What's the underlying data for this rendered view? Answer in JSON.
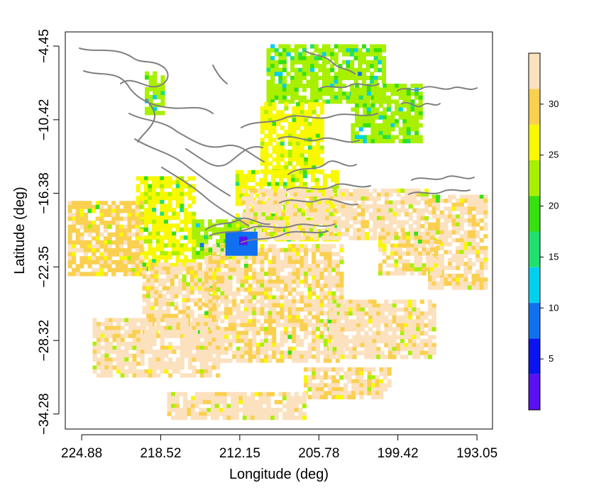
{
  "chart_data": {
    "type": "heatmap",
    "title": "",
    "xlabel": "Longitude (deg)",
    "ylabel": "Latitude (deg)",
    "x_ticks": [
      "224.88",
      "218.52",
      "212.15",
      "205.78",
      "199.42",
      "193.05"
    ],
    "y_ticks": [
      "-4.45",
      "-10.42",
      "-16.38",
      "-22.35",
      "-28.32",
      "-34.28"
    ],
    "x_reversed": true,
    "xlim": [
      226.2,
      191.8
    ],
    "ylim": [
      -35.5,
      -3.3
    ],
    "grid": false,
    "colorbar": {
      "ticks": [
        "5",
        "10",
        "15",
        "20",
        "25",
        "30"
      ],
      "min": 0,
      "max": 35,
      "steps": [
        {
          "from": 0,
          "to": 3.5,
          "color": "#5a10f0"
        },
        {
          "from": 3.5,
          "to": 7,
          "color": "#0a14f0"
        },
        {
          "from": 7,
          "to": 10.5,
          "color": "#1070f0"
        },
        {
          "from": 10.5,
          "to": 14,
          "color": "#00d0f0"
        },
        {
          "from": 14,
          "to": 17.5,
          "color": "#20e070"
        },
        {
          "from": 17.5,
          "to": 21,
          "color": "#38e010"
        },
        {
          "from": 21,
          "to": 24.5,
          "color": "#a8f000"
        },
        {
          "from": 24.5,
          "to": 28,
          "color": "#f8f800"
        },
        {
          "from": 28,
          "to": 31.5,
          "color": "#fad050"
        },
        {
          "from": 31.5,
          "to": 35,
          "color": "#fce1be"
        }
      ]
    },
    "disk": {
      "center_lon": 209.0,
      "center_lat": -19.6,
      "radius_deg": 19.0
    },
    "regions": [
      {
        "lon_min": 210.0,
        "lon_max": 200.5,
        "lat_min": -9.0,
        "lat_max": -4.3,
        "value": 22
      },
      {
        "lon_min": 210.5,
        "lon_max": 205.5,
        "lat_min": -14.5,
        "lat_max": -9.0,
        "value": 27
      },
      {
        "lon_min": 212.5,
        "lon_max": 204.5,
        "lat_min": -20.0,
        "lat_max": -14.5,
        "value": 27
      },
      {
        "lon_min": 203.2,
        "lon_max": 197.5,
        "lat_min": -12.0,
        "lat_max": -7.5,
        "value": 23
      },
      {
        "lon_min": 219.8,
        "lon_max": 218.5,
        "lat_min": -10.0,
        "lat_max": -6.5,
        "value": 23
      },
      {
        "lon_min": 220.5,
        "lon_max": 216.0,
        "lat_min": -22.5,
        "lat_max": -15.0,
        "value": 26
      },
      {
        "lon_min": 216.0,
        "lon_max": 211.0,
        "lat_min": -21.5,
        "lat_max": -18.5,
        "value": 22
      },
      {
        "lon_min": 226.0,
        "lon_max": 220.0,
        "lat_min": -23.0,
        "lat_max": -17.0,
        "value": 31
      },
      {
        "lon_min": 220.0,
        "lon_max": 214.0,
        "lat_min": -28.0,
        "lat_max": -22.0,
        "value": 32
      },
      {
        "lon_min": 215.0,
        "lon_max": 204.0,
        "lat_min": -30.0,
        "lat_max": -20.5,
        "value": 32
      },
      {
        "lon_min": 212.0,
        "lon_max": 197.0,
        "lat_min": -20.0,
        "lat_max": -16.0,
        "value": 33
      },
      {
        "lon_min": 197.0,
        "lon_max": 192.5,
        "lat_min": -24.0,
        "lat_max": -16.5,
        "value": 32
      },
      {
        "lon_min": 201.0,
        "lon_max": 196.0,
        "lat_min": -23.0,
        "lat_max": -19.5,
        "value": 32
      },
      {
        "lon_min": 205.0,
        "lon_max": 196.5,
        "lat_min": -29.5,
        "lat_max": -25.0,
        "value": 33
      },
      {
        "lon_min": 207.0,
        "lon_max": 200.0,
        "lat_min": -33.0,
        "lat_max": -30.5,
        "value": 32
      },
      {
        "lon_min": 218.0,
        "lon_max": 207.0,
        "lat_min": -34.5,
        "lat_max": -32.5,
        "value": 33
      },
      {
        "lon_min": 224.0,
        "lon_max": 214.0,
        "lat_min": -31.0,
        "lat_max": -26.5,
        "value": 33
      },
      {
        "lon_min": 213.3,
        "lon_max": 210.8,
        "lat_min": -21.2,
        "lat_max": -19.5,
        "value": 8
      },
      {
        "lon_min": 212.2,
        "lon_max": 211.6,
        "lat_min": -20.5,
        "lat_max": -19.9,
        "value": 1
      }
    ]
  }
}
